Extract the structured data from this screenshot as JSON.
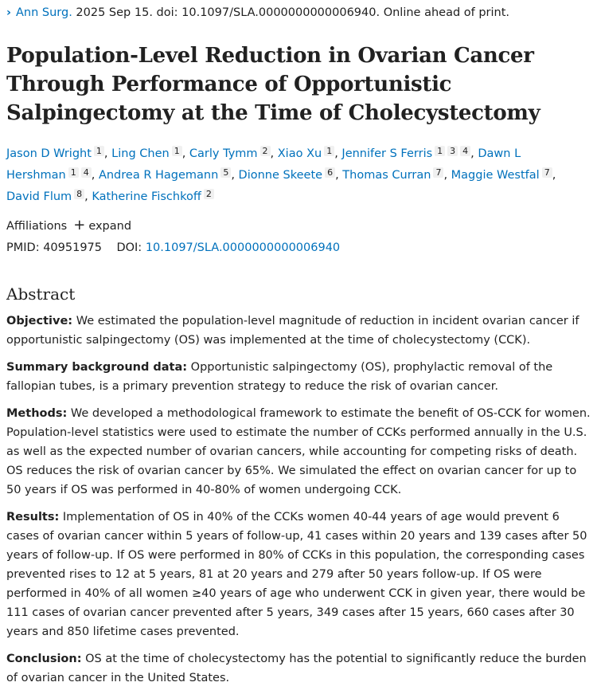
{
  "citation": {
    "journal": "Ann Surg.",
    "rest": " 2025 Sep 15. doi: 10.1097/SLA.0000000000006940. Online ahead of print."
  },
  "title": "Population-Level Reduction in Ovarian Cancer Through Performance of Opportunistic Salpingectomy at the Time of Cholecystectomy",
  "authors": [
    {
      "name": "Jason D Wright",
      "aff": [
        "1"
      ]
    },
    {
      "name": "Ling Chen",
      "aff": [
        "1"
      ]
    },
    {
      "name": "Carly Tymm",
      "aff": [
        "2"
      ]
    },
    {
      "name": "Xiao Xu",
      "aff": [
        "1"
      ]
    },
    {
      "name": "Jennifer S Ferris",
      "aff": [
        "1",
        "3",
        "4"
      ]
    },
    {
      "name": "Dawn L Hershman",
      "aff": [
        "1",
        "4"
      ]
    },
    {
      "name": "Andrea R Hagemann",
      "aff": [
        "5"
      ]
    },
    {
      "name": "Dionne Skeete",
      "aff": [
        "6"
      ]
    },
    {
      "name": "Thomas Curran",
      "aff": [
        "7"
      ]
    },
    {
      "name": "Maggie Westfal",
      "aff": [
        "7"
      ]
    },
    {
      "name": "David Flum",
      "aff": [
        "8"
      ]
    },
    {
      "name": "Katherine Fischkoff",
      "aff": [
        "2"
      ]
    }
  ],
  "affiliations": {
    "label": "Affiliations",
    "expand": "expand"
  },
  "ids": {
    "pmid_label": "PMID:",
    "pmid": "40951975",
    "doi_label": "DOI:",
    "doi": "10.1097/SLA.0000000000006940"
  },
  "abstract": {
    "heading": "Abstract",
    "sections": [
      {
        "label": "Objective:",
        "text": " We estimated the population-level magnitude of reduction in incident ovarian cancer if opportunistic salpingectomy (OS) was implemented at the time of cholecystectomy (CCK)."
      },
      {
        "label": "Summary background data:",
        "text": " Opportunistic salpingectomy (OS), prophylactic removal of the fallopian tubes, is a primary prevention strategy to reduce the risk of ovarian cancer."
      },
      {
        "label": "Methods:",
        "text": " We developed a methodological framework to estimate the benefit of OS-CCK for women. Population-level statistics were used to estimate the number of CCKs performed annually in the U.S. as well as the expected number of ovarian cancers, while accounting for competing risks of death. OS reduces the risk of ovarian cancer by 65%. We simulated the effect on ovarian cancer for up to 50 years if OS was performed in 40-80% of women undergoing CCK."
      },
      {
        "label": "Results:",
        "text": " Implementation of OS in 40% of the CCKs women 40-44 years of age would prevent 6 cases of ovarian cancer within 5 years of follow-up, 41 cases within 20 years and 139 cases after 50 years of follow-up. If OS were performed in 80% of CCKs in this population, the corresponding cases prevented rises to 12 at 5 years, 81 at 20 years and 279 after 50 years follow-up. If OS were performed in 40% of all women ≥40 years of age who underwent CCK in given year, there would be 111 cases of ovarian cancer prevented after 5 years, 349 cases after 15 years, 660 cases after 30 years and 850 lifetime cases prevented."
      },
      {
        "label": "Conclusion:",
        "text": " OS at the time of cholecystectomy has the potential to significantly reduce the burden of ovarian cancer in the United States."
      }
    ]
  }
}
